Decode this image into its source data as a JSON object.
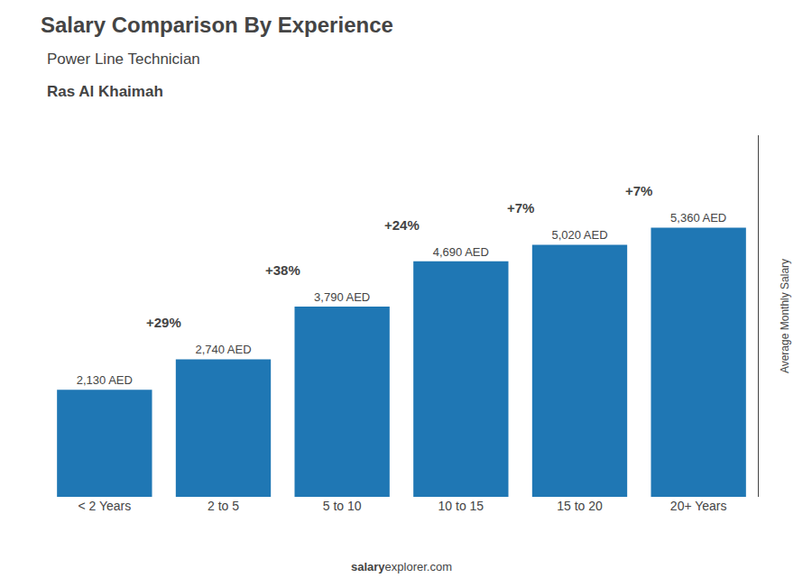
{
  "chart_data": {
    "type": "bar",
    "title": "Salary Comparison By Experience",
    "subtitle": "Power Line Technician",
    "annotations": [
      "Ras Al Khaimah",
      "+29%",
      "+38%",
      "+24%",
      "+7%",
      "+7%",
      "salary",
      "explorer.com"
    ],
    "ylabel": "Average Monthly Salary",
    "categories": [
      "< 2 Years",
      "2 to 5",
      "5 to 10",
      "10 to 15",
      "15 to 20",
      "20+ Years"
    ],
    "values": [
      2130,
      2740,
      3790,
      4690,
      5020,
      5360
    ],
    "value_labels": [
      "2,130 AED",
      "2,740 AED",
      "3,790 AED",
      "4,690 AED",
      "5,020 AED",
      "5,360 AED"
    ],
    "data_labels": true,
    "ylim": [
      0,
      7200
    ],
    "grid": false,
    "tick_labels": "x"
  }
}
